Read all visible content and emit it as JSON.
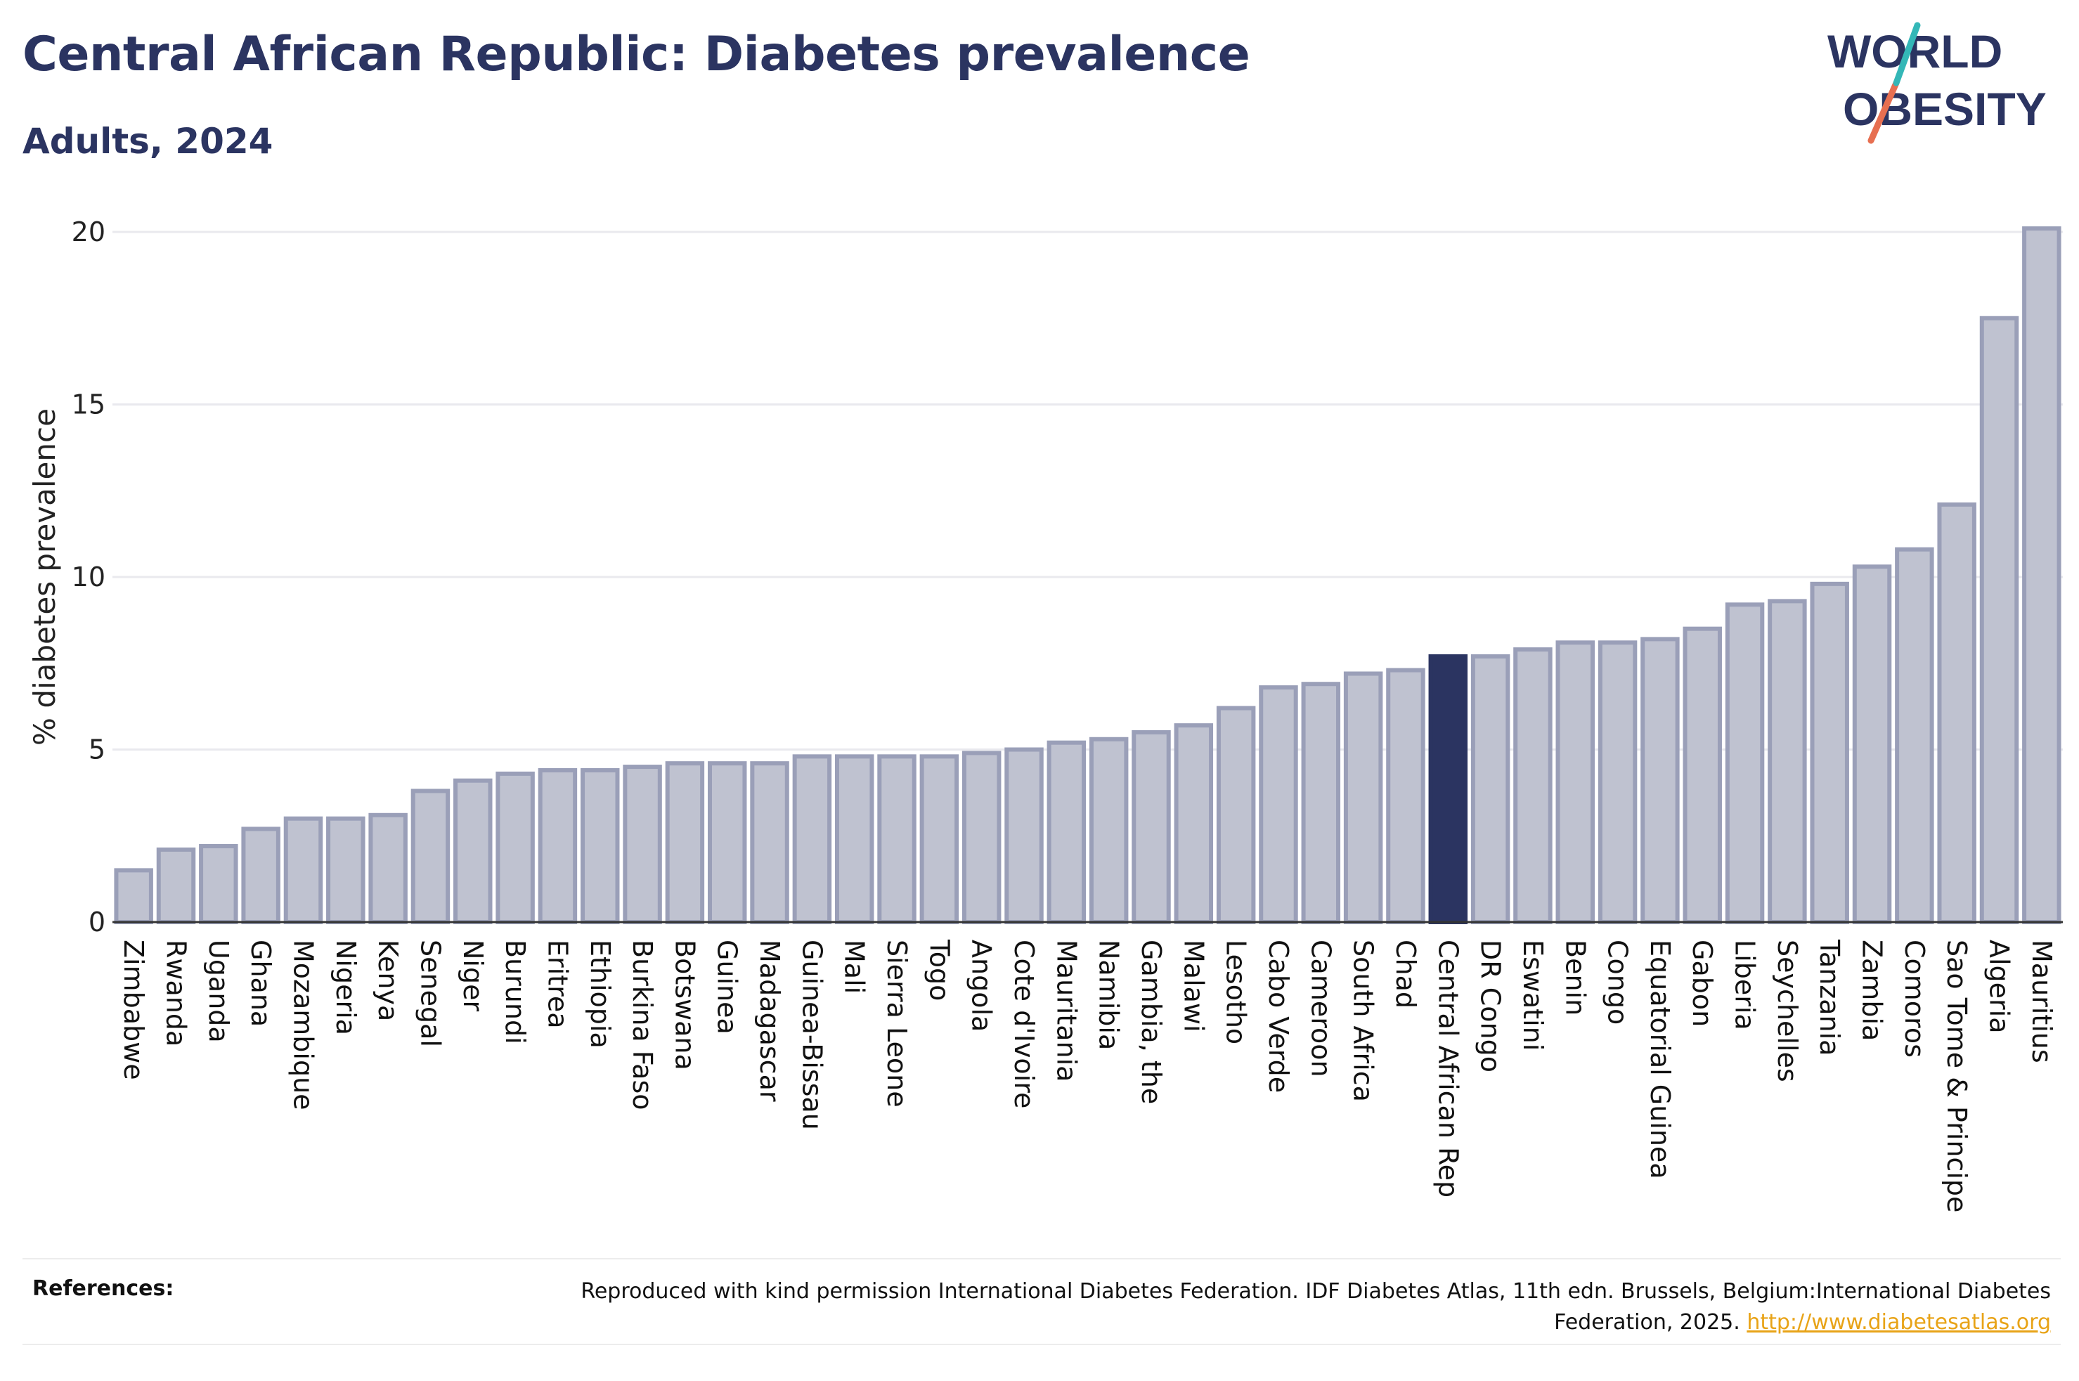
{
  "title": "Central African Republic: Diabetes prevalence",
  "subtitle": "Adults, 2024",
  "logo": {
    "line1": "WORLD",
    "line2": "OBESITY",
    "slash_colors": [
      "#34b7b7",
      "#e76f51"
    ]
  },
  "colors": {
    "highlight": "#2b3461",
    "bar": "#bfc2d0",
    "bar_border": "#9a9fb8",
    "text": "#2b3461",
    "link": "#e8a317"
  },
  "chart_data": {
    "type": "bar",
    "ylabel": "% diabetes prevalence",
    "ylim": [
      0,
      20
    ],
    "yticks": [
      0,
      5,
      10,
      15,
      20
    ],
    "grid": true,
    "highlight": "Central African Rep",
    "categories": [
      "Zimbabwe",
      "Rwanda",
      "Uganda",
      "Ghana",
      "Mozambique",
      "Nigeria",
      "Kenya",
      "Senegal",
      "Niger",
      "Burundi",
      "Eritrea",
      "Ethiopia",
      "Burkina Faso",
      "Botswana",
      "Guinea",
      "Madagascar",
      "Guinea-Bissau",
      "Mali",
      "Sierra Leone",
      "Togo",
      "Angola",
      "Cote d'Ivoire",
      "Mauritania",
      "Namibia",
      "Gambia, the",
      "Malawi",
      "Lesotho",
      "Cabo Verde",
      "Cameroon",
      "South Africa",
      "Chad",
      "Central African Rep",
      "DR Congo",
      "Eswatini",
      "Benin",
      "Congo",
      "Equatorial Guinea",
      "Gabon",
      "Liberia",
      "Seychelles",
      "Tanzania",
      "Zambia",
      "Comoros",
      "Sao Tome & Principe",
      "Algeria",
      "Mauritius"
    ],
    "values": [
      1.5,
      2.1,
      2.2,
      2.7,
      3.0,
      3.0,
      3.1,
      3.8,
      4.1,
      4.3,
      4.4,
      4.4,
      4.5,
      4.6,
      4.6,
      4.6,
      4.8,
      4.8,
      4.8,
      4.8,
      4.9,
      5.0,
      5.2,
      5.3,
      5.5,
      5.7,
      6.2,
      6.8,
      6.9,
      7.2,
      7.3,
      7.7,
      7.7,
      7.9,
      8.1,
      8.1,
      8.2,
      8.5,
      9.2,
      9.3,
      9.8,
      10.3,
      10.8,
      12.1,
      17.5,
      20.1
    ]
  },
  "references": {
    "label": "References:",
    "text": "Reproduced with kind permission International Diabetes Federation. IDF Diabetes Atlas, 11th edn. Brussels, Belgium:International Diabetes Federation, 2025.",
    "link": "http://www.diabetesatlas.org"
  }
}
